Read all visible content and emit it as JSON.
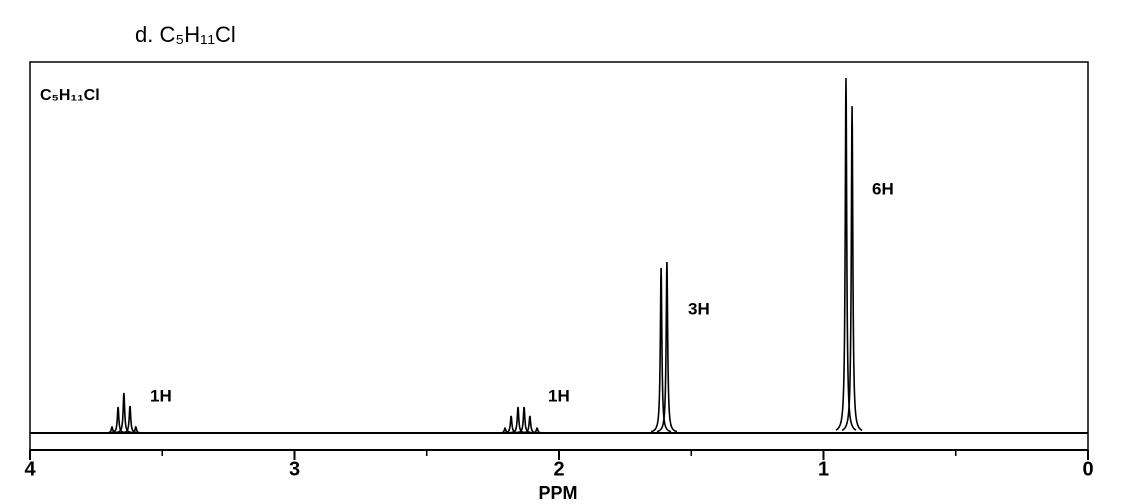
{
  "chart_data": {
    "type": "spectrum",
    "title": "d. C₅H₁₁Cl",
    "label": "C₅H₁₁Cl",
    "x_label": "PPM",
    "x": [
      3.69,
      3.667,
      3.645,
      3.622,
      3.6,
      2.204,
      2.181,
      2.155,
      2.132,
      2.11,
      2.083,
      1.614,
      1.592,
      0.915,
      0.892
    ],
    "values": [
      1.6,
      7,
      10.8,
      7.3,
      1.6,
      1.3,
      4.6,
      7,
      7,
      4.6,
      1.3,
      44.5,
      46.1,
      95.7,
      88.1
    ],
    "xlim": [
      4,
      0
    ],
    "ylim": [
      0,
      100
    ],
    "xticks": [
      4,
      3,
      2,
      1,
      0
    ],
    "xminorticks": [
      3.5,
      2.5,
      1.5,
      0.5
    ],
    "annotations": [
      "1H",
      "1H",
      "3H",
      "6H"
    ],
    "color": "#000000"
  }
}
